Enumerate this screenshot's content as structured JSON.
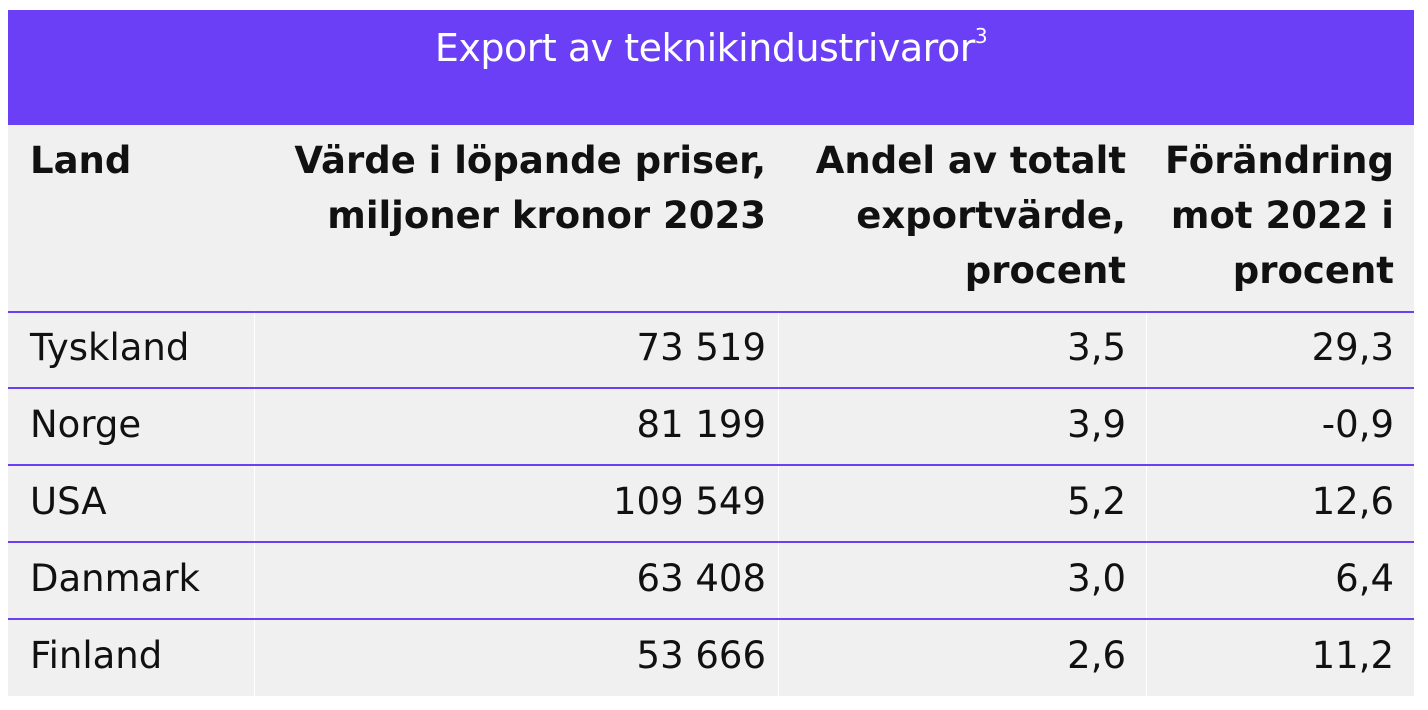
{
  "title": {
    "text": "Export av teknikindustrivaror",
    "footnote": "3"
  },
  "colors": {
    "header_band": "#6a3ff6",
    "table_bg": "#f0f0f0",
    "row_rule": "#6a3ff6"
  },
  "columns": [
    {
      "lines": [
        "Land"
      ]
    },
    {
      "lines": [
        "Värde i löpande priser,",
        "miljoner kronor 2023"
      ]
    },
    {
      "lines": [
        "Andel av totalt",
        "exportvärde,",
        "procent"
      ]
    },
    {
      "lines": [
        "Förändring",
        "mot 2022 i",
        "procent"
      ]
    }
  ],
  "rows": [
    {
      "land": "Tyskland",
      "varde": "73 519",
      "andel": "3,5",
      "forandring": "29,3"
    },
    {
      "land": "Norge",
      "varde": "81 199",
      "andel": "3,9",
      "forandring": "-0,9"
    },
    {
      "land": "USA",
      "varde": "109 549",
      "andel": "5,2",
      "forandring": "12,6"
    },
    {
      "land": "Danmark",
      "varde": "63 408",
      "andel": "3,0",
      "forandring": "6,4"
    },
    {
      "land": "Finland",
      "varde": "53 666",
      "andel": "2,6",
      "forandring": "11,2"
    }
  ]
}
